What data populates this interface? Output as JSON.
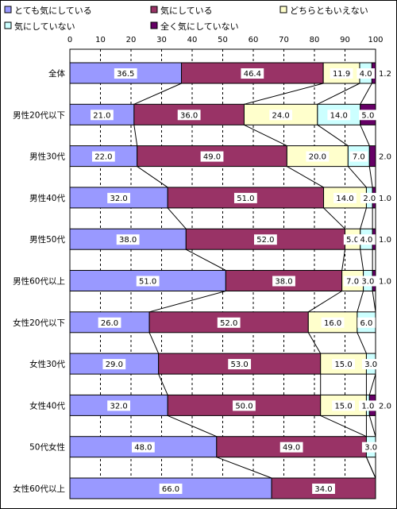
{
  "chart_data": {
    "type": "bar",
    "orientation": "horizontal",
    "stacked": true,
    "xlim": [
      0,
      100
    ],
    "x_ticks": [
      "0",
      "10",
      "20",
      "30",
      "40",
      "50",
      "60",
      "70",
      "80",
      "90",
      "100"
    ],
    "grid": true,
    "legend_position": "top",
    "categories": [
      "全体",
      "男性20代以下",
      "男性30代",
      "男性40代",
      "男性50代",
      "男性60代以上",
      "女性20代以下",
      "女性30代",
      "女性40代",
      "50代女性",
      "女性60代以上"
    ],
    "series": [
      {
        "name": "とても気にしている",
        "color": "#9999ff",
        "values": [
          36.5,
          21.0,
          22.0,
          32.0,
          38.0,
          51.0,
          26.0,
          29.0,
          32.0,
          48.0,
          66.0
        ]
      },
      {
        "name": "気にしている",
        "color": "#993366",
        "values": [
          46.4,
          36.0,
          49.0,
          51.0,
          52.0,
          38.0,
          52.0,
          53.0,
          50.0,
          49.0,
          34.0
        ]
      },
      {
        "name": "どちらともいえない",
        "color": "#ffffcc",
        "values": [
          11.9,
          24.0,
          20.0,
          14.0,
          5.0,
          7.0,
          16.0,
          15.0,
          15.0,
          0,
          0
        ]
      },
      {
        "name": "気にしていない",
        "color": "#ccffff",
        "values": [
          4.0,
          14.0,
          7.0,
          2.0,
          4.0,
          3.0,
          6.0,
          3.0,
          1.0,
          3.0,
          0
        ]
      },
      {
        "name": "全く気にしていない",
        "color": "#660066",
        "values": [
          1.2,
          5.0,
          2.0,
          1.0,
          1.0,
          1.0,
          0,
          0,
          2.0,
          0,
          0
        ]
      }
    ],
    "data_labels": [
      [
        "36.5",
        "46.4",
        "11.9",
        "4.0",
        "1.2"
      ],
      [
        "21.0",
        "36.0",
        "24.0",
        "14.0",
        "5.0"
      ],
      [
        "22.0",
        "49.0",
        "20.0",
        "7.0",
        "2.0"
      ],
      [
        "32.0",
        "51.0",
        "14.0",
        "2.0",
        "1.0"
      ],
      [
        "38.0",
        "52.0",
        "5.0",
        "4.0",
        "1.0"
      ],
      [
        "51.0",
        "38.0",
        "7.0",
        "3.0",
        "1.0"
      ],
      [
        "26.0",
        "52.0",
        "16.0",
        "6.0",
        ""
      ],
      [
        "29.0",
        "53.0",
        "15.0",
        "3.0",
        ""
      ],
      [
        "32.0",
        "50.0",
        "15.0",
        "1.0",
        "2.0"
      ],
      [
        "48.0",
        "49.0",
        "",
        "3.0",
        ""
      ],
      [
        "66.0",
        "34.0",
        "",
        "",
        ""
      ]
    ]
  }
}
